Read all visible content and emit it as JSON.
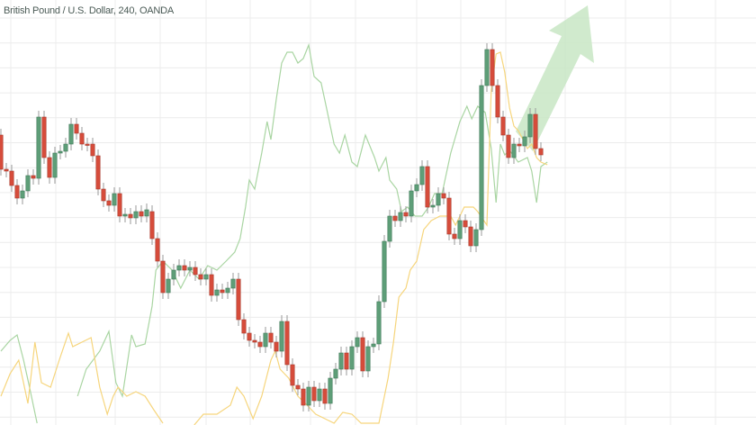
{
  "header": {
    "title": "British Pound / U.S. Dollar, 240, OANDA"
  },
  "colors": {
    "up": "#5e9e78",
    "down": "#d64c3b",
    "wick": "#9a9a9a",
    "grid": "#ececec",
    "line_green": "#a9d5a2",
    "line_yellow": "#f6d57c",
    "arrow": "#c8e6c4"
  },
  "chart_data": {
    "type": "candlestick",
    "title": "British Pound / U.S. Dollar, 240, OANDA",
    "grid": true,
    "ylim": [
      0,
      472
    ],
    "candles_open_close": [
      [
        322,
        284
      ],
      [
        284,
        282
      ],
      [
        282,
        266
      ],
      [
        266,
        252
      ],
      [
        252,
        260
      ],
      [
        260,
        277
      ],
      [
        277,
        274
      ],
      [
        274,
        342
      ],
      [
        342,
        297
      ],
      [
        297,
        275
      ],
      [
        275,
        302
      ],
      [
        302,
        304
      ],
      [
        304,
        312
      ],
      [
        312,
        334
      ],
      [
        334,
        324
      ],
      [
        324,
        312
      ],
      [
        312,
        311
      ],
      [
        312,
        299
      ],
      [
        299,
        262
      ],
      [
        262,
        249
      ],
      [
        249,
        244
      ],
      [
        244,
        257
      ],
      [
        257,
        232
      ],
      [
        232,
        234
      ],
      [
        234,
        230
      ],
      [
        230,
        237
      ],
      [
        237,
        232
      ],
      [
        232,
        239
      ],
      [
        237,
        207
      ],
      [
        207,
        182
      ],
      [
        182,
        147
      ],
      [
        147,
        162
      ],
      [
        162,
        172
      ],
      [
        172,
        177
      ],
      [
        177,
        172
      ],
      [
        172,
        175
      ],
      [
        175,
        167
      ],
      [
        167,
        162
      ],
      [
        162,
        167
      ],
      [
        167,
        144
      ],
      [
        144,
        150
      ],
      [
        150,
        147
      ],
      [
        147,
        152
      ],
      [
        152,
        162
      ],
      [
        162,
        117
      ],
      [
        117,
        102
      ],
      [
        102,
        94
      ],
      [
        94,
        92
      ],
      [
        92,
        87
      ],
      [
        87,
        102
      ],
      [
        102,
        92
      ],
      [
        92,
        82
      ],
      [
        82,
        115
      ],
      [
        115,
        67
      ],
      [
        67,
        44
      ],
      [
        44,
        40
      ],
      [
        40,
        22
      ],
      [
        22,
        42
      ],
      [
        42,
        27
      ],
      [
        27,
        40
      ],
      [
        40,
        24
      ],
      [
        24,
        52
      ],
      [
        52,
        62
      ],
      [
        62,
        80
      ],
      [
        80,
        62
      ],
      [
        62,
        87
      ],
      [
        87,
        97
      ],
      [
        97,
        60
      ],
      [
        60,
        87
      ],
      [
        87,
        90
      ],
      [
        90,
        137
      ],
      [
        137,
        204
      ],
      [
        204,
        232
      ],
      [
        232,
        227
      ],
      [
        227,
        236
      ],
      [
        236,
        232
      ],
      [
        232,
        260
      ],
      [
        260,
        267
      ],
      [
        267,
        287
      ],
      [
        287,
        242
      ],
      [
        242,
        244
      ],
      [
        244,
        257
      ],
      [
        257,
        252
      ],
      [
        252,
        212
      ],
      [
        212,
        207
      ],
      [
        207,
        227
      ],
      [
        227,
        220
      ],
      [
        220,
        199
      ],
      [
        199,
        217
      ],
      [
        217,
        377
      ],
      [
        377,
        417
      ],
      [
        417,
        377
      ],
      [
        377,
        342
      ],
      [
        342,
        322
      ],
      [
        322,
        297
      ],
      [
        297,
        312
      ],
      [
        312,
        310
      ],
      [
        310,
        320
      ],
      [
        320,
        345
      ],
      [
        345,
        307
      ],
      [
        307,
        300
      ]
    ],
    "overlay_lines": [
      {
        "color_key": "line_green",
        "points": [
          [
            0,
            82
          ],
          [
            1.7,
            94
          ],
          [
            3,
            100
          ],
          [
            4.2,
            72
          ],
          [
            5.3,
            42
          ],
          [
            6.7,
            2
          ],
          null,
          [
            14.2,
            32
          ],
          [
            15.8,
            62
          ],
          [
            18.3,
            82
          ],
          [
            20,
            104
          ],
          [
            21.3,
            47
          ],
          [
            22.5,
            32
          ],
          [
            24.2,
            100
          ],
          [
            25,
            87
          ],
          [
            26.7,
            90
          ],
          [
            28,
            132
          ],
          [
            28.7,
            172
          ],
          [
            30,
            182
          ],
          [
            31.7,
            172
          ],
          [
            33.3,
            152
          ],
          [
            35,
            172
          ],
          [
            36.7,
            162
          ],
          [
            38.3,
            177
          ],
          [
            40,
            172
          ],
          [
            41.7,
            182
          ],
          [
            43.3,
            192
          ],
          [
            44.3,
            207
          ],
          [
            45.3,
            242
          ],
          [
            46,
            272
          ],
          [
            47,
            262
          ],
          [
            48.3,
            302
          ],
          [
            49.3,
            337
          ],
          [
            50,
            317
          ],
          [
            51,
            362
          ],
          [
            52,
            402
          ],
          [
            53,
            414
          ],
          [
            54,
            414
          ],
          [
            55,
            402
          ],
          [
            56,
            407
          ],
          [
            57,
            422
          ],
          [
            58,
            387
          ],
          [
            59.3,
            380
          ],
          [
            60.3,
            352
          ],
          [
            61.7,
            312
          ],
          [
            62.7,
            302
          ],
          [
            63.7,
            322
          ],
          [
            65,
            292
          ],
          [
            66,
            287
          ],
          [
            67.5,
            322
          ],
          [
            69.2,
            297
          ],
          [
            70,
            282
          ],
          [
            71.3,
            297
          ],
          [
            72,
            272
          ],
          [
            73.3,
            262
          ],
          [
            74.2,
            237
          ],
          [
            75.3,
            242
          ],
          [
            76.7,
            232
          ],
          [
            78,
            232
          ],
          [
            79.2,
            242
          ],
          [
            80.3,
            257
          ],
          [
            81.7,
            257
          ],
          [
            83.3,
            302
          ],
          [
            85,
            337
          ],
          [
            86.3,
            354
          ],
          [
            87.2,
            340
          ],
          [
            88.3,
            354
          ],
          [
            89.7,
            347
          ],
          [
            90.8,
            307
          ],
          [
            91.7,
            247
          ],
          [
            92.5,
            312
          ],
          [
            93.3,
            300
          ],
          [
            94.2,
            305
          ],
          [
            95.8,
            292
          ],
          [
            97.5,
            297
          ],
          [
            98.3,
            282
          ],
          [
            99.2,
            247
          ],
          [
            100,
            287
          ],
          [
            101.2,
            292
          ]
        ]
      },
      {
        "color_key": "line_yellow",
        "points": [
          [
            0,
            32
          ],
          [
            1.7,
            57
          ],
          [
            3.3,
            72
          ],
          [
            5,
            24
          ],
          [
            6.3,
            92
          ],
          [
            7.5,
            47
          ],
          [
            9.2,
            42
          ],
          [
            10.8,
            72
          ],
          [
            12.5,
            102
          ],
          [
            13.3,
            87
          ],
          [
            15,
            92
          ],
          [
            16.7,
            97
          ],
          [
            18.3,
            42
          ],
          [
            19.7,
            12
          ],
          [
            20.8,
            32
          ],
          [
            21.7,
            42
          ],
          [
            23.3,
            32
          ],
          [
            25,
            37
          ],
          [
            26.7,
            32
          ],
          [
            28.3,
            17
          ],
          [
            30,
            2
          ],
          null,
          [
            35.8,
            0
          ],
          [
            37.5,
            12
          ],
          [
            40,
            12
          ],
          [
            42.5,
            22
          ],
          [
            43.7,
            42
          ],
          [
            45,
            32
          ],
          [
            46.7,
            7
          ],
          [
            48.3,
            32
          ],
          [
            50,
            72
          ],
          [
            50.8,
            82
          ],
          [
            51.7,
            62
          ],
          [
            53.3,
            52
          ],
          [
            55,
            32
          ],
          [
            56.7,
            22
          ],
          [
            58.3,
            12
          ],
          [
            60,
            7
          ],
          [
            61.7,
            2
          ],
          [
            63.3,
            14
          ],
          [
            65,
            12
          ],
          [
            66.7,
            2
          ],
          [
            70,
            2
          ],
          [
            71.7,
            52
          ],
          [
            72.7,
            92
          ],
          [
            73.7,
            142
          ],
          [
            75,
            152
          ],
          [
            75.8,
            172
          ],
          [
            77,
            182
          ],
          [
            78.3,
            217
          ],
          [
            79.7,
            227
          ],
          [
            81.3,
            232
          ],
          [
            83.3,
            232
          ],
          [
            84.2,
            222
          ],
          [
            85.8,
            242
          ],
          [
            87.5,
            242
          ],
          [
            88.3,
            237
          ],
          [
            90,
            222
          ],
          [
            90.8,
            372
          ],
          [
            91.7,
            412
          ],
          [
            92.5,
            414
          ],
          [
            93.3,
            392
          ],
          [
            94.2,
            352
          ],
          [
            95,
            332
          ],
          [
            95.8,
            327
          ],
          [
            96.7,
            317
          ],
          [
            97.5,
            307
          ],
          [
            98.3,
            312
          ],
          [
            99.2,
            297
          ],
          [
            100,
            292
          ],
          [
            101.2,
            289
          ]
        ]
      }
    ],
    "annotation": {
      "type": "arrow",
      "direction": "up-right",
      "color_key": "arrow"
    }
  }
}
